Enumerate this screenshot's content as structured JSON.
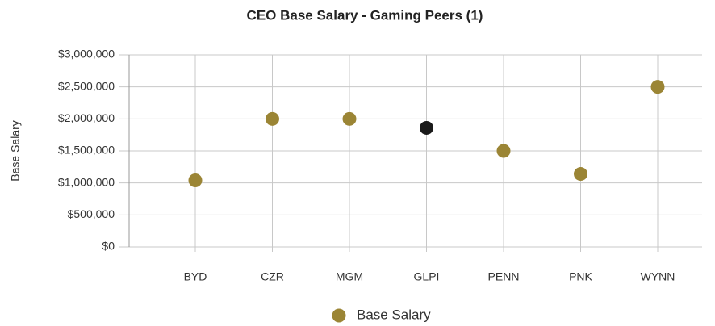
{
  "chart_data": {
    "type": "scatter",
    "title": "CEO Base Salary - Gaming Peers (1)",
    "y_label": "Base Salary",
    "categories": [
      "BYD",
      "CZR",
      "MGM",
      "GLPI",
      "PENN",
      "PNK",
      "WYNN"
    ],
    "series": [
      {
        "name": "Base Salary",
        "color": "#9b8535",
        "values": [
          1040000,
          2000000,
          2000000,
          1860000,
          1500000,
          1140000,
          2500000
        ],
        "point_colors": [
          "#9b8535",
          "#9b8535",
          "#9b8535",
          "#1a1a1a",
          "#9b8535",
          "#9b8535",
          "#9b8535"
        ]
      }
    ],
    "ylim": [
      0,
      3000000
    ],
    "yticks": [
      {
        "value": 0,
        "label": "$0"
      },
      {
        "value": 500000,
        "label": "$500,000"
      },
      {
        "value": 1000000,
        "label": "$1,000,000"
      },
      {
        "value": 1500000,
        "label": "$1,500,000"
      },
      {
        "value": 2000000,
        "label": "$2,000,000"
      },
      {
        "value": 2500000,
        "label": "$2,500,000"
      },
      {
        "value": 3000000,
        "label": "$3,000,000"
      }
    ],
    "grid": true,
    "legend": "bottom"
  }
}
